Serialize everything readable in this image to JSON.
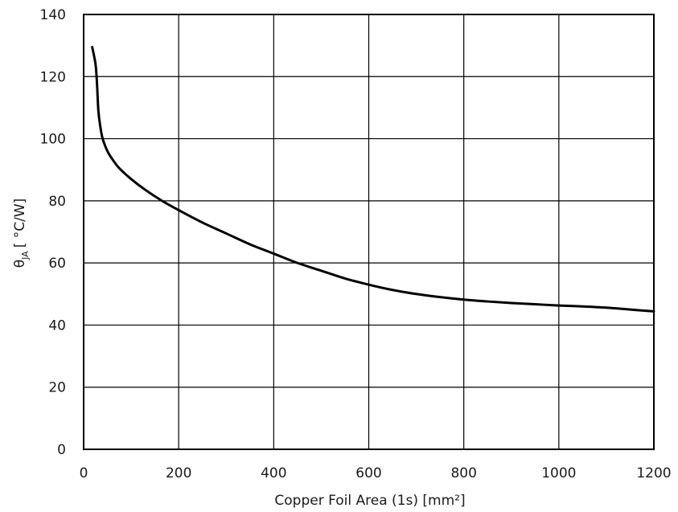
{
  "chart_data": {
    "type": "line",
    "title": "",
    "xlabel": "Copper Foil Area (1s) [mm²]",
    "ylabel": {
      "symbol": "θ",
      "subscript": "JA",
      "unit": "[ °C/W]"
    },
    "xlim": [
      0,
      1200
    ],
    "ylim": [
      0,
      140
    ],
    "xticks": [
      0,
      200,
      400,
      600,
      800,
      1000,
      1200
    ],
    "yticks": [
      0,
      20,
      40,
      60,
      80,
      100,
      120,
      140
    ],
    "grid": true,
    "legend": "none",
    "series": [
      {
        "color": "#000000",
        "points": [
          [
            18,
            129.5
          ],
          [
            25,
            124
          ],
          [
            28,
            118
          ],
          [
            31,
            109
          ],
          [
            35,
            104
          ],
          [
            40,
            100
          ],
          [
            50,
            96
          ],
          [
            60,
            93.5
          ],
          [
            75,
            90.5
          ],
          [
            100,
            87
          ],
          [
            130,
            83.5
          ],
          [
            165,
            80
          ],
          [
            200,
            77
          ],
          [
            250,
            73
          ],
          [
            300,
            69.5
          ],
          [
            350,
            66
          ],
          [
            400,
            63
          ],
          [
            450,
            60
          ],
          [
            500,
            57.5
          ],
          [
            550,
            55
          ],
          [
            600,
            53
          ],
          [
            650,
            51.3
          ],
          [
            700,
            50
          ],
          [
            750,
            49
          ],
          [
            800,
            48.2
          ],
          [
            850,
            47.6
          ],
          [
            900,
            47.1
          ],
          [
            950,
            46.7
          ],
          [
            1000,
            46.3
          ],
          [
            1050,
            46
          ],
          [
            1100,
            45.6
          ],
          [
            1150,
            45
          ],
          [
            1200,
            44.4
          ]
        ]
      }
    ]
  }
}
